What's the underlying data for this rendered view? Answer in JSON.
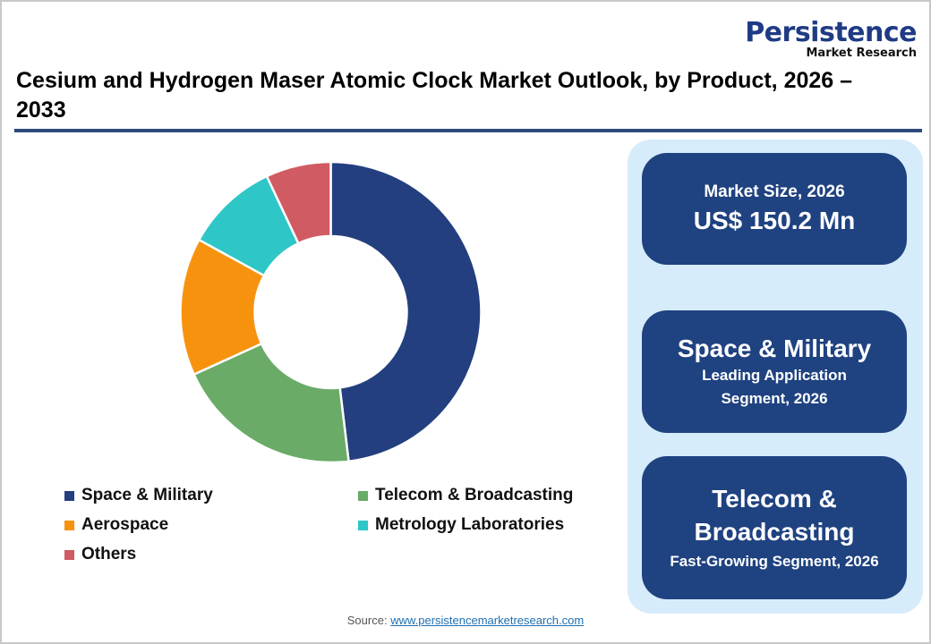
{
  "logo": {
    "main": "Persistence",
    "sub": "Market Research"
  },
  "title": "Cesium and Hydrogen Maser Atomic Clock Market Outlook, by Product, 2026 – 2033",
  "cards": {
    "market_size": {
      "label": "Market Size, 2026",
      "value": "US$ 150.2 Mn"
    },
    "leading": {
      "headline": "Space & Military",
      "sub_line1": "Leading Application",
      "sub_line2": "Segment, 2026"
    },
    "fast_growing": {
      "headline_line1": "Telecom &",
      "headline_line2": "Broadcasting",
      "sub": "Fast-Growing Segment, 2026"
    }
  },
  "legend": [
    {
      "label": "Space & Military",
      "color": "#243f7f"
    },
    {
      "label": "Telecom & Broadcasting",
      "color": "#6aab67"
    },
    {
      "label": "Aerospace",
      "color": "#f7920f"
    },
    {
      "label": "Metrology Laboratories",
      "color": "#2ec6c6"
    },
    {
      "label": "Others",
      "color": "#d15b63"
    }
  ],
  "source": {
    "prefix": "Source: ",
    "link": "www.persistencemarketresearch.com"
  },
  "colors": {
    "brand_navy": "#1f4280",
    "panel_bg": "#d6ecfa",
    "title_rule": "#2d4a7c"
  },
  "chart_data": {
    "type": "pie",
    "subtype": "donut",
    "title": "Cesium and Hydrogen Maser Atomic Clock Market Outlook, by Product, 2026 – 2033",
    "categories": [
      "Space & Military",
      "Telecom & Broadcasting",
      "Aerospace",
      "Metrology Laboratories",
      "Others"
    ],
    "values": [
      48.1,
      20.1,
      14.8,
      10.0,
      7.0
    ],
    "unit": "% share (estimated from slice angles)",
    "colors": [
      "#243f7f",
      "#6aab67",
      "#f7920f",
      "#2ec6c6",
      "#d15b63"
    ],
    "start_angle": "12 o'clock, clockwise",
    "legend_position": "bottom",
    "data_labels": false
  }
}
